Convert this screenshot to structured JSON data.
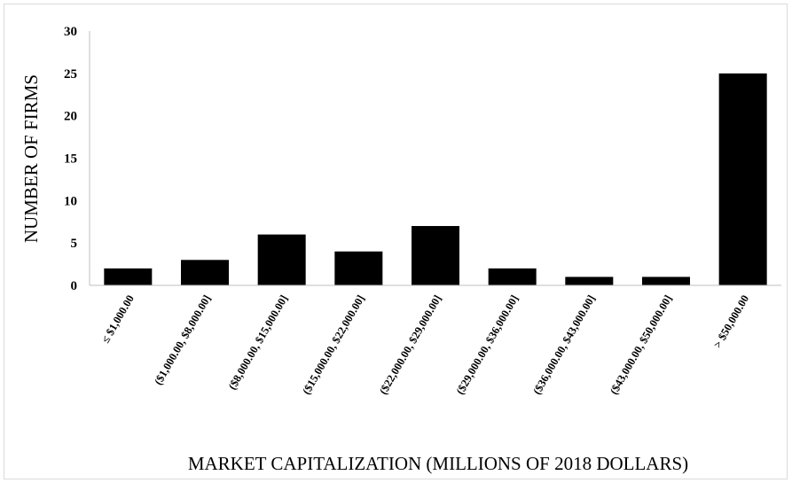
{
  "chart_data": {
    "type": "bar",
    "title": "",
    "xlabel": "MARKET CAPITALIZATION (MILLIONS OF 2018 DOLLARS)",
    "ylabel": "NUMBER OF FIRMS",
    "categories": [
      "≤ $1,000.00",
      "($1,000.00, $8,000.00]",
      "($8,000.00, $15,000.00]",
      "($15,000.00, $22,000.00]",
      "($22,000.00, $29,000.00]",
      "($29,000.00, $36,000.00]",
      "($36,000.00, $43,000.00]",
      "($43,000.00, $50,000.00]",
      "> $50,000.00"
    ],
    "values": [
      2,
      3,
      6,
      4,
      7,
      2,
      1,
      1,
      25
    ],
    "ylim": [
      0,
      30
    ],
    "yticks": [
      "0",
      "5",
      "10",
      "15",
      "20",
      "25",
      "30"
    ],
    "grid": false,
    "legend": "none",
    "bar_color": "#000000",
    "axis_color": "#bfbfbf"
  }
}
